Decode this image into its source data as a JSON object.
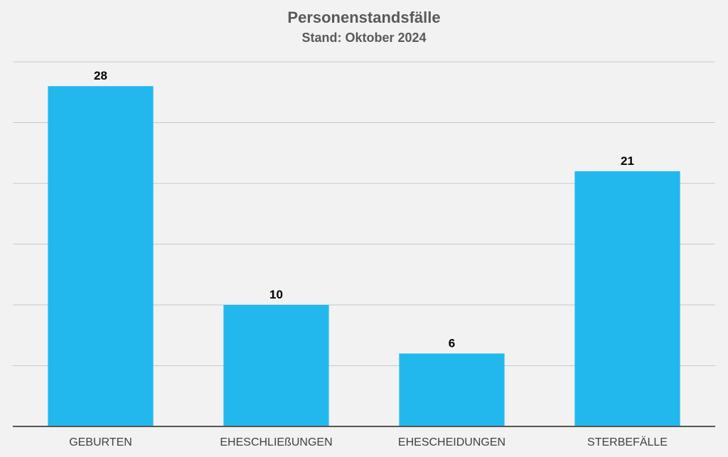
{
  "chart_data": {
    "type": "bar",
    "title": "Personenstandsfälle",
    "subtitle": "Stand: Oktober 2024",
    "categories": [
      "GEBURTEN",
      "EHESCHLIEßUNGEN",
      "EHESCHEIDUNGEN",
      "STERBEFÄLLE"
    ],
    "values": [
      28,
      10,
      6,
      21
    ],
    "ylim": [
      0,
      30
    ],
    "grid": true,
    "legend": "none",
    "colors": {
      "bar": "#22b8ee",
      "gridline": "#c8c8c8",
      "axis": "#555555",
      "label": "#000000",
      "category": "#404040",
      "background": "#f2f2f2"
    }
  }
}
